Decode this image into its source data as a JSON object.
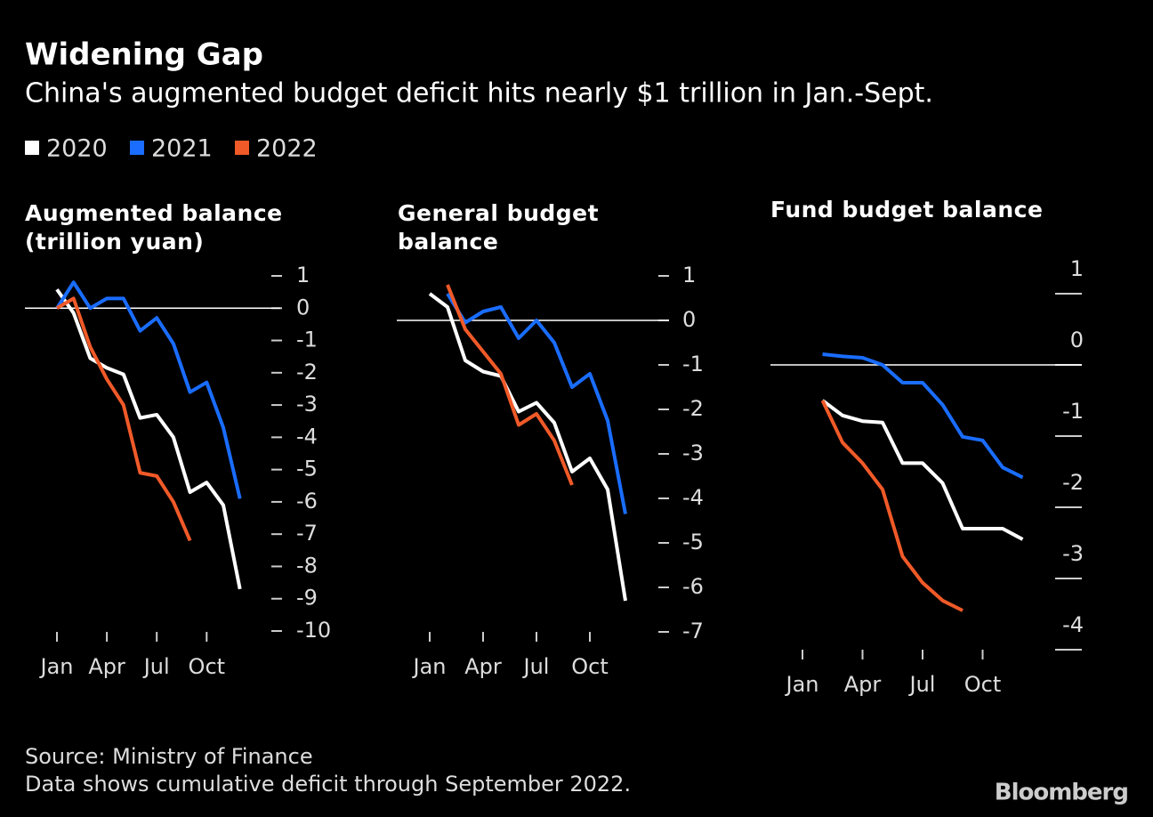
{
  "title": "Widening Gap",
  "subtitle": "China's augmented budget deficit hits nearly $1 trillion in Jan.-Sept.",
  "source": "Source: Ministry of Finance",
  "note": "Data shows cumulative deficit through September 2022.",
  "logo": "Bloomberg",
  "chart_data": [
    {
      "type": "line",
      "title": "Augmented balance (trillion yuan)",
      "categories": [
        "Jan",
        null,
        null,
        "Apr",
        null,
        null,
        "Jul",
        null,
        null,
        "Oct",
        null,
        null
      ],
      "series": [
        {
          "name": "2020",
          "color": "#ffffff",
          "values": [
            0.58,
            -0.15,
            -1.55,
            -1.85,
            -2.05,
            -3.4,
            -3.3,
            -4.0,
            -5.7,
            -5.4,
            -6.1,
            -8.7
          ]
        },
        {
          "name": "2021",
          "color": "#1a6dff",
          "values": [
            0.0,
            0.8,
            0.0,
            0.3,
            0.3,
            -0.7,
            -0.3,
            -1.1,
            -2.6,
            -2.3,
            -3.7,
            -5.9
          ]
        },
        {
          "name": "2022",
          "color": "#f05a28",
          "values": [
            0.0,
            0.3,
            -1.2,
            -2.2,
            -3.0,
            -5.1,
            -5.2,
            -6.0,
            -7.2,
            null,
            null,
            null
          ]
        }
      ],
      "ylim": [
        -10,
        1
      ],
      "yticks": [
        1,
        0,
        -1,
        -2,
        -3,
        -4,
        -5,
        -6,
        -7,
        -8,
        -9,
        -10
      ],
      "legend": "top-left"
    },
    {
      "type": "line",
      "title": "General budget balance",
      "categories": [
        "Jan",
        null,
        null,
        "Apr",
        null,
        null,
        "Jul",
        null,
        null,
        "Oct",
        null,
        null
      ],
      "series": [
        {
          "name": "2020",
          "color": "#ffffff",
          "values": [
            0.6,
            0.3,
            -0.9,
            -1.15,
            -1.25,
            -2.05,
            -1.85,
            -2.3,
            -3.4,
            -3.1,
            -3.8,
            -6.3
          ]
        },
        {
          "name": "2021",
          "color": "#1a6dff",
          "values": [
            null,
            0.6,
            -0.05,
            0.2,
            0.3,
            -0.4,
            0.0,
            -0.5,
            -1.5,
            -1.2,
            -2.25,
            -4.35
          ]
        },
        {
          "name": "2022",
          "color": "#f05a28",
          "values": [
            null,
            0.8,
            -0.2,
            -0.7,
            -1.2,
            -2.35,
            -2.1,
            -2.7,
            -3.7,
            null,
            null,
            null
          ]
        }
      ],
      "ylim": [
        -7,
        1
      ],
      "yticks": [
        1,
        0,
        -1,
        -2,
        -3,
        -4,
        -5,
        -6,
        -7
      ]
    },
    {
      "type": "line",
      "title": "Fund budget balance",
      "categories": [
        "Jan",
        null,
        null,
        "Apr",
        null,
        null,
        "Jul",
        null,
        null,
        "Oct",
        null,
        null
      ],
      "series": [
        {
          "name": "2020",
          "color": "#ffffff",
          "values": [
            null,
            -0.5,
            -0.71,
            -0.79,
            -0.81,
            -1.38,
            -1.38,
            -1.66,
            -2.3,
            -2.3,
            -2.3,
            -2.45
          ]
        },
        {
          "name": "2021",
          "color": "#1a6dff",
          "values": [
            null,
            0.15,
            0.12,
            0.1,
            0.0,
            -0.25,
            -0.25,
            -0.56,
            -1.01,
            -1.06,
            -1.44,
            -1.58
          ]
        },
        {
          "name": "2022",
          "color": "#f05a28",
          "values": [
            null,
            -0.5,
            -1.09,
            -1.38,
            -1.75,
            -2.69,
            -3.06,
            -3.31,
            -3.45,
            null,
            null,
            null
          ]
        }
      ],
      "ylim": [
        -4,
        1
      ],
      "yticks": [
        1,
        0,
        -1,
        -2,
        -3,
        -4
      ]
    }
  ]
}
